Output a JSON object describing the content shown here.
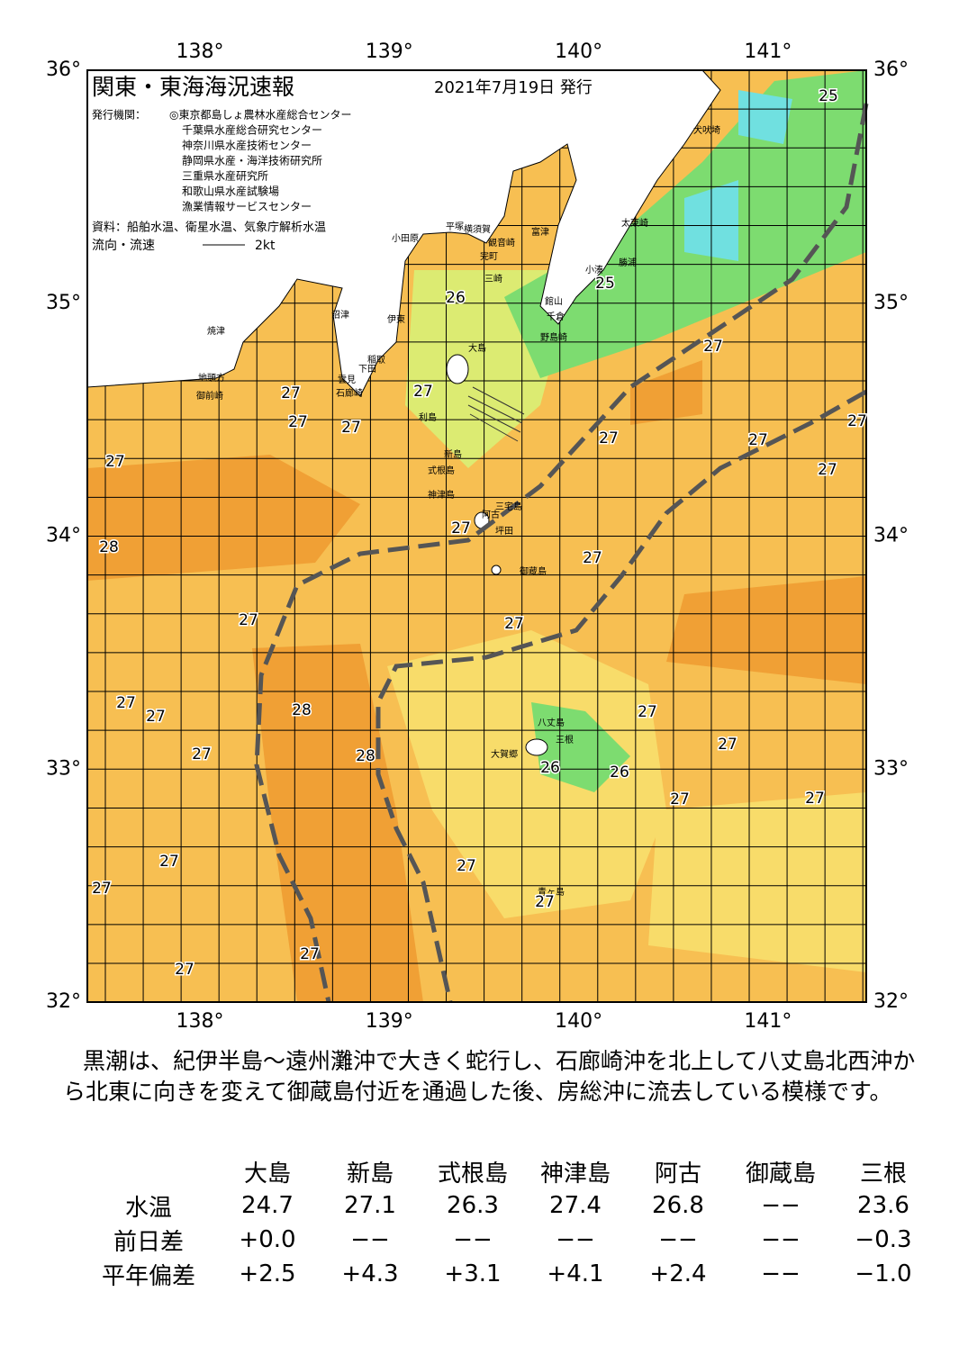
{
  "map": {
    "title": "関東・東海海況速報",
    "date": "2021年7月19日 発行",
    "issuer_label": "発行機関：",
    "issuers": [
      "◎東京都島しょ農林水産総合センター",
      "千葉県水産総合研究センター",
      "神奈川県水産技術センター",
      "静岡県水産・海洋技術研究所",
      "三重県水産研究所",
      "和歌山県水産試験場",
      "漁業情報サービスセンター"
    ],
    "source": "資料：船舶水温、衛星水温、気象庁解析水温",
    "legend_label": "流向・流速",
    "legend_speed": "2kt",
    "lon_ticks": [
      {
        "value": 138,
        "label": "138°"
      },
      {
        "value": 139,
        "label": "139°"
      },
      {
        "value": 140,
        "label": "140°"
      },
      {
        "value": 141,
        "label": "141°"
      }
    ],
    "lat_ticks": [
      {
        "value": 36,
        "label": "36°"
      },
      {
        "value": 35,
        "label": "35°"
      },
      {
        "value": 34,
        "label": "34°"
      },
      {
        "value": 33,
        "label": "33°"
      },
      {
        "value": 32,
        "label": "32°"
      }
    ],
    "places": [
      "小田原",
      "平塚",
      "横須賀",
      "観音崎",
      "富津",
      "完町",
      "三崎",
      "館山",
      "千倉",
      "野島崎",
      "太東崎",
      "勝浦",
      "小湊",
      "犬吠埼",
      "伊東",
      "沼津",
      "焼津",
      "稲取",
      "下田",
      "雲見",
      "石廊崎",
      "地頭方",
      "御前崎",
      "大島",
      "利島",
      "新島",
      "式根島",
      "神津島",
      "三宅島",
      "阿古",
      "坪田",
      "御蔵島",
      "八丈島",
      "三根",
      "大賀郷",
      "青ヶ島"
    ],
    "temperatures": [
      25,
      26,
      25,
      27,
      27,
      27,
      27,
      27,
      27,
      27,
      27,
      27,
      27,
      28,
      27,
      27,
      27,
      27,
      27,
      28,
      27,
      27,
      28,
      27,
      27,
      26,
      26,
      27,
      27,
      27,
      27,
      27,
      27,
      27,
      27
    ]
  },
  "text": {
    "paragraph": "黒潮は、紀伊半島～遠州灘沖で大きく蛇行し、石廊崎沖を北上して八丈島北西沖から北東に向きを変えて御蔵島付近を通過した後、房総沖に流去している模様です。"
  },
  "table": {
    "columns": [
      "大島",
      "新島",
      "式根島",
      "神津島",
      "阿古",
      "御蔵島",
      "三根"
    ],
    "rows": [
      {
        "label": "水温",
        "cells": [
          "24.7",
          "27.1",
          "26.3",
          "27.4",
          "26.8",
          "−−",
          "23.6"
        ]
      },
      {
        "label": "前日差",
        "cells": [
          "+0.0",
          "−−",
          "−−",
          "−−",
          "−−",
          "−−",
          "−0.3"
        ]
      },
      {
        "label": "平年偏差",
        "cells": [
          "+2.5",
          "+4.3",
          "+3.1",
          "+4.1",
          "+2.4",
          "−−",
          "−1.0"
        ]
      }
    ]
  }
}
